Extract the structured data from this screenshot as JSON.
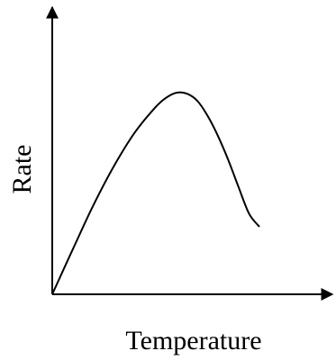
{
  "chart_data": {
    "type": "line",
    "title": "",
    "xlabel": "Temperature",
    "ylabel": "Rate",
    "xlim": [
      0,
      100
    ],
    "ylim": [
      0,
      100
    ],
    "grid": false,
    "series": [
      {
        "x": [
          0,
          10,
          20,
          30,
          40,
          50,
          55,
          60,
          65,
          70,
          75,
          80,
          85,
          90,
          95,
          100
        ],
        "y": [
          0,
          22.5,
          44.5,
          64.0,
          80.5,
          93.0,
          97.5,
          100.0,
          99.5,
          96.0,
          88.5,
          78.5,
          66.5,
          53.0,
          40.0,
          33.5
        ]
      }
    ],
    "colors": {
      "axis": "#000000",
      "line": "#000000",
      "background": "#ffffff"
    }
  }
}
